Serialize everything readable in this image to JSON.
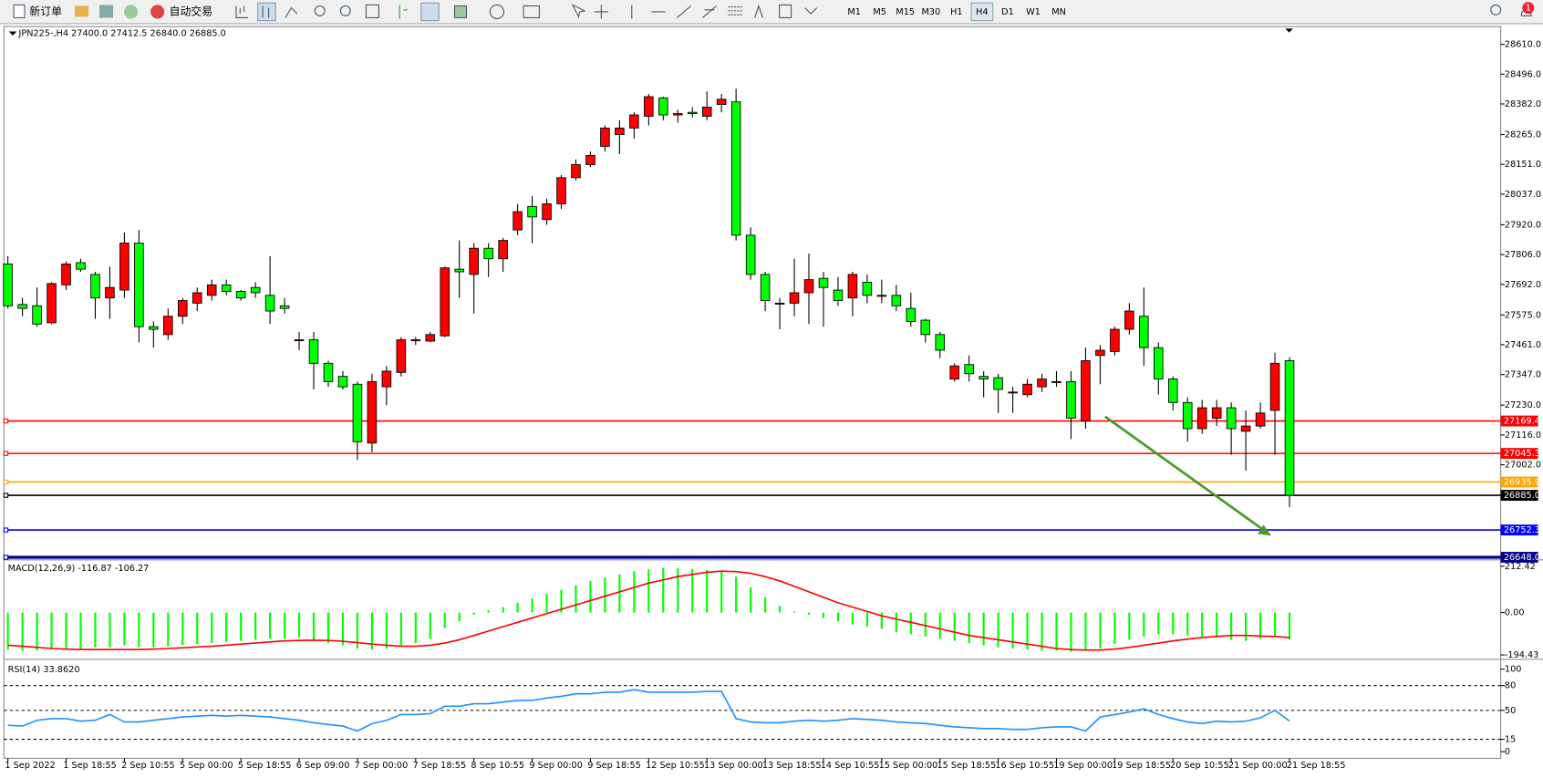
{
  "toolbar": {
    "buttons": [
      "新订单",
      "自动交易"
    ],
    "timeframes": [
      "M1",
      "M5",
      "M15",
      "M30",
      "H1",
      "H4",
      "D1",
      "W1",
      "MN"
    ],
    "active": "H4",
    "notification": "1"
  },
  "chart_data": [
    {
      "type": "candlestick",
      "header": "JPN225-,H4  27400.0 27412.5 26840.0 26885.0",
      "up_color": "#ff0000",
      "down_color": "#00ff00",
      "categories": [
        "1 Sep 2022",
        null,
        null,
        null,
        "1 Sep 18:55",
        null,
        null,
        null,
        "2 Sep 10:55",
        null,
        null,
        null,
        "5 Sep 00:00",
        null,
        null,
        null,
        "5 Sep 18:55",
        null,
        null,
        null,
        "6 Sep 09:00",
        null,
        null,
        null,
        "7 Sep 00:00",
        null,
        null,
        null,
        "7 Sep 18:55",
        null,
        null,
        null,
        "8 Sep 10:55",
        null,
        null,
        null,
        "9 Sep 00:00",
        null,
        null,
        null,
        "9 Sep 18:55",
        null,
        null,
        null,
        "12 Sep 10:55",
        null,
        null,
        null,
        "13 Sep 00:00",
        null,
        null,
        null,
        "13 Sep 18:55",
        null,
        null,
        null,
        "14 Sep 10:55",
        null,
        null,
        null,
        "15 Sep 00:00",
        null,
        null,
        null,
        "15 Sep 18:55",
        null,
        null,
        null,
        "16 Sep 10:55",
        null,
        null,
        null,
        "19 Sep 00:00",
        null,
        null,
        null,
        "19 Sep 18:55",
        null,
        null,
        null,
        "20 Sep 10:55",
        null,
        null,
        null,
        "21 Sep 00:00",
        null,
        null,
        null,
        "21 Sep 18:55"
      ],
      "open": [
        27770,
        27615,
        27610,
        27545,
        27690,
        27775,
        27730,
        27640,
        27670,
        27850,
        27530,
        27500,
        27570,
        27620,
        27650,
        27690,
        27665,
        27680,
        27650,
        27610,
        27480,
        27480,
        27390,
        27340,
        27310,
        27085,
        27300,
        27355,
        27480,
        27475,
        27495,
        27750,
        27730,
        27830,
        27790,
        27900,
        27990,
        27940,
        28000,
        28100,
        28150,
        28220,
        28265,
        28290,
        28335,
        28405,
        28340,
        28350,
        28335,
        28380,
        28390,
        27880,
        27730,
        27620,
        27620,
        27660,
        27715,
        27670,
        27640,
        27700,
        27650,
        27650,
        27600,
        27555,
        27500,
        27330,
        27385,
        27340,
        27335,
        27280,
        27270,
        27300,
        27320,
        27320,
        27170,
        27420,
        27435,
        27520,
        27570,
        27450,
        27330,
        27240,
        27140,
        27180,
        27220,
        27130,
        27150,
        27210,
        27400
      ],
      "high": [
        27800,
        27640,
        27680,
        27700,
        27780,
        27790,
        27740,
        27760,
        27890,
        27900,
        27550,
        27600,
        27640,
        27680,
        27710,
        27710,
        27670,
        27700,
        27800,
        27640,
        27510,
        27510,
        27400,
        27360,
        27320,
        27350,
        27380,
        27490,
        27490,
        27510,
        27760,
        27860,
        27850,
        27850,
        27870,
        28000,
        28030,
        28020,
        28110,
        28170,
        28200,
        28300,
        28320,
        28350,
        28420,
        28410,
        28360,
        28370,
        28430,
        28420,
        28440,
        27910,
        27740,
        27640,
        27790,
        27810,
        27740,
        27720,
        27740,
        27730,
        27710,
        27690,
        27660,
        27560,
        27510,
        27390,
        27420,
        27360,
        27350,
        27300,
        27330,
        27350,
        27360,
        27360,
        27450,
        27460,
        27530,
        27620,
        27680,
        27470,
        27340,
        27260,
        27250,
        27250,
        27240,
        27210,
        27240,
        27430,
        27412.5
      ],
      "low": [
        27600,
        27570,
        27530,
        27540,
        27670,
        27740,
        27560,
        27560,
        27640,
        27470,
        27450,
        27480,
        27540,
        27590,
        27630,
        27650,
        27630,
        27640,
        27540,
        27580,
        27440,
        27290,
        27300,
        27290,
        27020,
        27050,
        27230,
        27340,
        27460,
        27470,
        27490,
        27640,
        27580,
        27720,
        27740,
        27880,
        27850,
        27920,
        27980,
        28090,
        28140,
        28200,
        28190,
        28250,
        28300,
        28320,
        28310,
        28330,
        28320,
        28350,
        27860,
        27710,
        27590,
        27520,
        27570,
        27540,
        27530,
        27610,
        27570,
        27620,
        27620,
        27590,
        27530,
        27470,
        27410,
        27320,
        27320,
        27260,
        27200,
        27200,
        27260,
        27280,
        27300,
        27100,
        27140,
        27310,
        27420,
        27500,
        27380,
        27270,
        27210,
        27090,
        27120,
        27150,
        27040,
        26980,
        27140,
        27040,
        26840
      ],
      "close": [
        27610,
        27600,
        27540,
        27695,
        27770,
        27750,
        27640,
        27680,
        27850,
        27530,
        27520,
        27570,
        27630,
        27660,
        27690,
        27665,
        27640,
        27660,
        27590,
        27600,
        27480,
        27390,
        27320,
        27300,
        27090,
        27320,
        27360,
        27480,
        27480,
        27500,
        27755,
        27740,
        27830,
        27790,
        27860,
        27970,
        27950,
        28000,
        28100,
        28150,
        28185,
        28290,
        28290,
        28340,
        28410,
        28340,
        28345,
        28345,
        28370,
        28400,
        27880,
        27730,
        27630,
        27620,
        27660,
        27710,
        27680,
        27630,
        27730,
        27650,
        27650,
        27610,
        27550,
        27500,
        27440,
        27380,
        27350,
        27330,
        27290,
        27280,
        27310,
        27330,
        27320,
        27180,
        27400,
        27440,
        27520,
        27590,
        27450,
        27330,
        27240,
        27140,
        27220,
        27220,
        27140,
        27150,
        27200,
        27390,
        26885
      ],
      "ylim": [
        26640,
        28678
      ],
      "yticks": [
        {
          "value": 28610,
          "label": "28610.0"
        },
        {
          "value": 28496,
          "label": "28496.0"
        },
        {
          "value": 28382,
          "label": "28382.0"
        },
        {
          "value": 28265,
          "label": "28265.0"
        },
        {
          "value": 28151,
          "label": "28151.0"
        },
        {
          "value": 28037,
          "label": "28037.0"
        },
        {
          "value": 27920,
          "label": "27920.0"
        },
        {
          "value": 27806,
          "label": "27806.0"
        },
        {
          "value": 27692,
          "label": "27692.0"
        },
        {
          "value": 27575,
          "label": "27575.0"
        },
        {
          "value": 27461,
          "label": "27461.0"
        },
        {
          "value": 27347,
          "label": "27347.0"
        },
        {
          "value": 27230,
          "label": "27230.0"
        },
        {
          "value": 27116,
          "label": "27116.0"
        },
        {
          "value": 27002,
          "label": "27002.0"
        }
      ],
      "hlines": [
        {
          "value": 27169.4,
          "label": "27169.4",
          "color": "#ff0000"
        },
        {
          "value": 27045.3,
          "label": "27045.3",
          "color": "#ff0000"
        },
        {
          "value": 26935.9,
          "label": "26935.9",
          "color": "#ffa500"
        },
        {
          "value": 26885,
          "label": "26885.0",
          "color": "#000000"
        },
        {
          "value": 26752.3,
          "label": "26752.3",
          "color": "#0000ff"
        },
        {
          "value": 26648,
          "label": "26648.0",
          "color": "#00008b"
        }
      ]
    },
    {
      "type": "macd",
      "label": "MACD(12,26,9) -116.87 -106.27",
      "color": "#00ff00",
      "signal_color": "#ff0000",
      "values": [
        -170,
        -175,
        -175,
        -170,
        -165,
        -170,
        -160,
        -160,
        -150,
        -160,
        -160,
        -155,
        -150,
        -145,
        -140,
        -135,
        -130,
        -125,
        -120,
        -120,
        -115,
        -125,
        -140,
        -150,
        -165,
        -170,
        -165,
        -150,
        -140,
        -120,
        -70,
        -40,
        -10,
        10,
        25,
        45,
        65,
        85,
        105,
        125,
        145,
        160,
        175,
        190,
        200,
        205,
        205,
        200,
        195,
        190,
        165,
        115,
        70,
        30,
        5,
        -10,
        -25,
        -40,
        -55,
        -65,
        -75,
        -90,
        -100,
        -110,
        -120,
        -130,
        -140,
        -150,
        -160,
        -165,
        -170,
        -175,
        -175,
        -180,
        -175,
        -165,
        -145,
        -125,
        -110,
        -100,
        -100,
        -105,
        -110,
        -115,
        -125,
        -130,
        -120,
        -110,
        -125
      ],
      "signal": [
        -150,
        -155,
        -160,
        -165,
        -168,
        -170,
        -170,
        -170,
        -170,
        -170,
        -168,
        -165,
        -162,
        -158,
        -155,
        -150,
        -145,
        -140,
        -135,
        -130,
        -128,
        -127,
        -128,
        -132,
        -138,
        -145,
        -150,
        -155,
        -155,
        -150,
        -140,
        -125,
        -105,
        -85,
        -65,
        -45,
        -25,
        -5,
        15,
        35,
        55,
        75,
        95,
        115,
        135,
        150,
        165,
        175,
        185,
        190,
        188,
        180,
        165,
        145,
        120,
        95,
        70,
        45,
        25,
        5,
        -15,
        -30,
        -45,
        -60,
        -75,
        -90,
        -105,
        -115,
        -125,
        -135,
        -145,
        -155,
        -165,
        -170,
        -172,
        -172,
        -168,
        -160,
        -150,
        -140,
        -130,
        -122,
        -115,
        -110,
        -105,
        -105,
        -108,
        -110,
        -115
      ],
      "ylim": [
        -208,
        235
      ],
      "yticks": [
        212.42,
        {
          "value": 0,
          "label": "0.00"
        },
        -194.43
      ]
    },
    {
      "type": "rsi",
      "label": "RSI(14) 33.8620",
      "color": "#1e90ff",
      "values": [
        32,
        31,
        38,
        40,
        40,
        37,
        38,
        45,
        36,
        36,
        38,
        40,
        42,
        43,
        44,
        43,
        44,
        43,
        42,
        40,
        38,
        35,
        33,
        31,
        25,
        34,
        38,
        45,
        45,
        46,
        55,
        55,
        58,
        58,
        60,
        62,
        62,
        65,
        67,
        70,
        70,
        72,
        72,
        75,
        72,
        72,
        72,
        72,
        73,
        73,
        40,
        36,
        35,
        35,
        37,
        38,
        37,
        38,
        40,
        39,
        38,
        36,
        35,
        34,
        32,
        30,
        29,
        28,
        28,
        27,
        27,
        29,
        30,
        30,
        25,
        42,
        45,
        48,
        52,
        45,
        40,
        36,
        34,
        37,
        36,
        37,
        41,
        50,
        37
      ],
      "ylim": [
        -8,
        110
      ],
      "yticks": [
        100,
        80,
        50,
        15,
        0
      ],
      "levels": [
        80,
        50,
        15
      ]
    }
  ]
}
